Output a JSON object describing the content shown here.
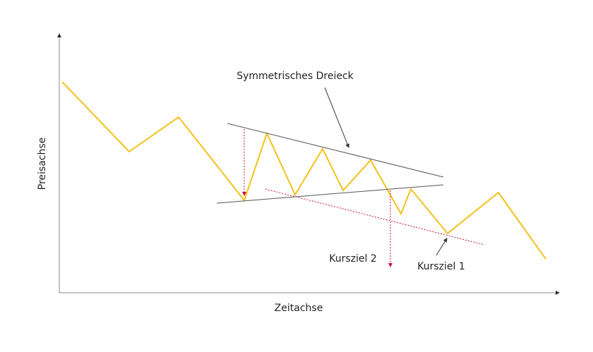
{
  "x_axis_label": "Zeitachse",
  "y_axis_label": "Preisachse",
  "annotations": {
    "pattern": "Symmetrisches Dreieck",
    "target_2": "Kursziel 2",
    "target_1": "Kursziel 1"
  }
}
